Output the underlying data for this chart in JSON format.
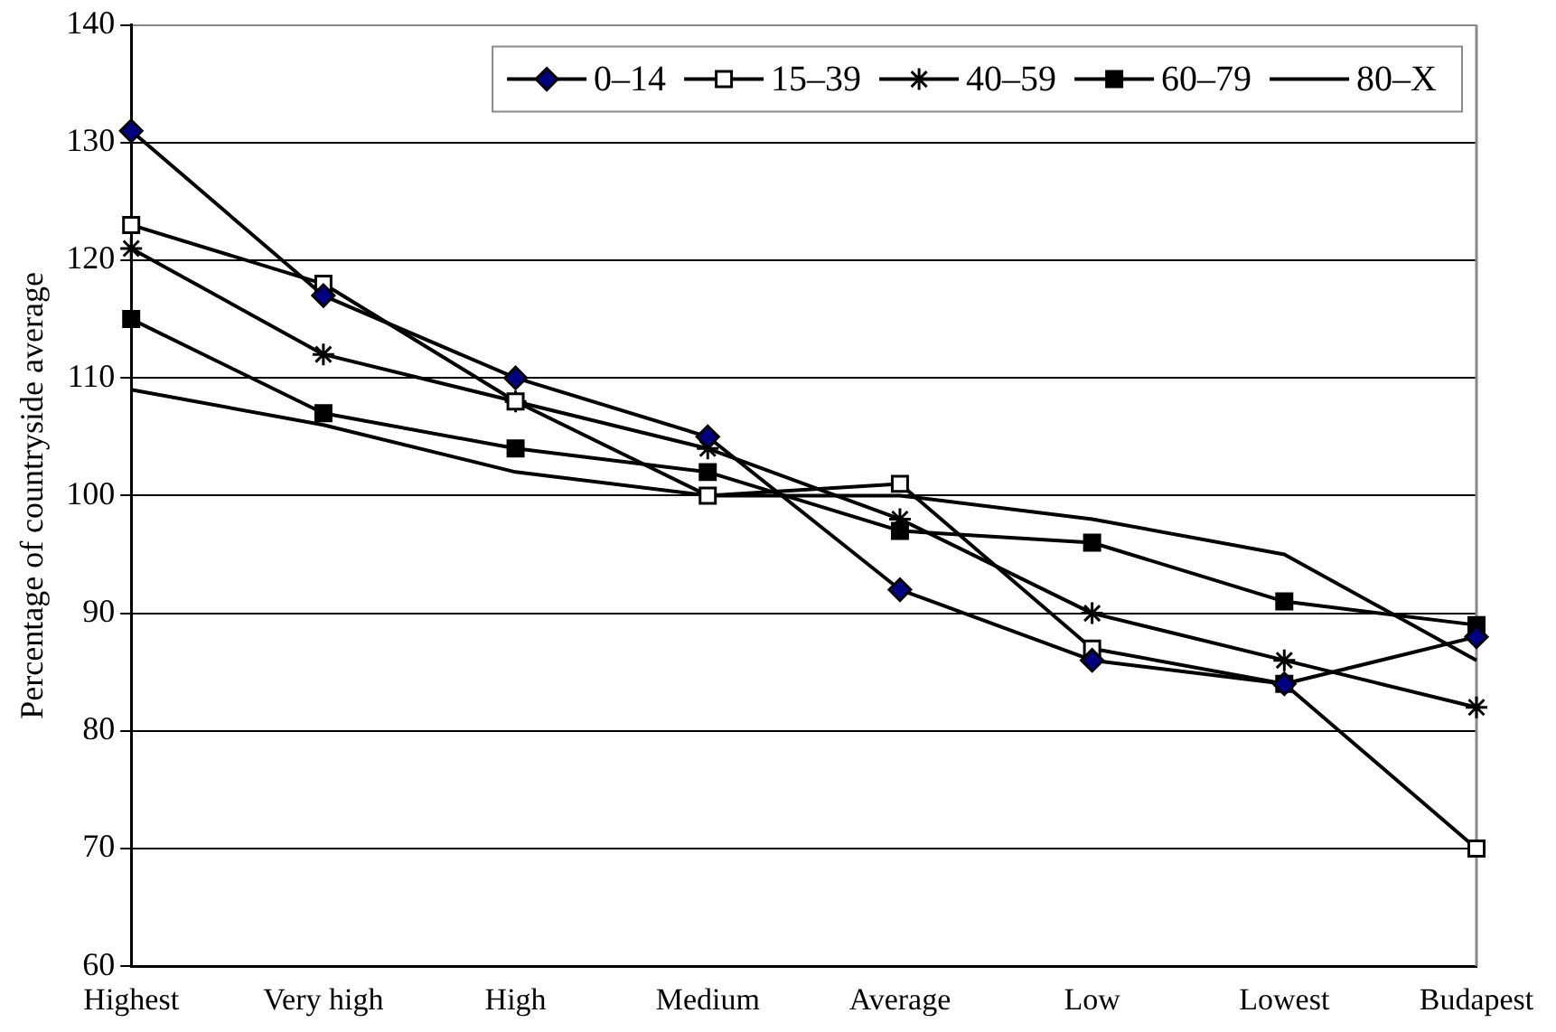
{
  "chart_data": {
    "type": "line",
    "ylabel": "Percentage of countryside average",
    "categories": [
      "Highest",
      "Very high",
      "High",
      "Medium",
      "Average",
      "Low",
      "Lowest",
      "Budapest"
    ],
    "series": [
      {
        "name": "0–14",
        "color": "#000080",
        "marker": "diamond",
        "values": [
          131,
          117,
          110,
          105,
          92,
          86,
          84,
          88
        ]
      },
      {
        "name": "15–39",
        "color": "#ffffff",
        "marker": "square",
        "values": [
          123,
          118,
          108,
          100,
          101,
          87,
          84,
          70
        ]
      },
      {
        "name": "40–59",
        "color": "#000000",
        "marker": "cross",
        "values": [
          121,
          112,
          108,
          104,
          98,
          90,
          86,
          82
        ]
      },
      {
        "name": "60–79",
        "color": "#000000",
        "marker": "square",
        "values": [
          115,
          107,
          104,
          102,
          97,
          96,
          91,
          89
        ]
      },
      {
        "name": "80–X",
        "color": "#000000",
        "marker": "none",
        "values": [
          109,
          106,
          102,
          100,
          100,
          98,
          95,
          86
        ]
      }
    ],
    "ylim": [
      60,
      140
    ],
    "yticks": [
      60,
      70,
      80,
      90,
      100,
      110,
      120,
      130,
      140
    ],
    "grid": "y",
    "legend": "top right"
  }
}
